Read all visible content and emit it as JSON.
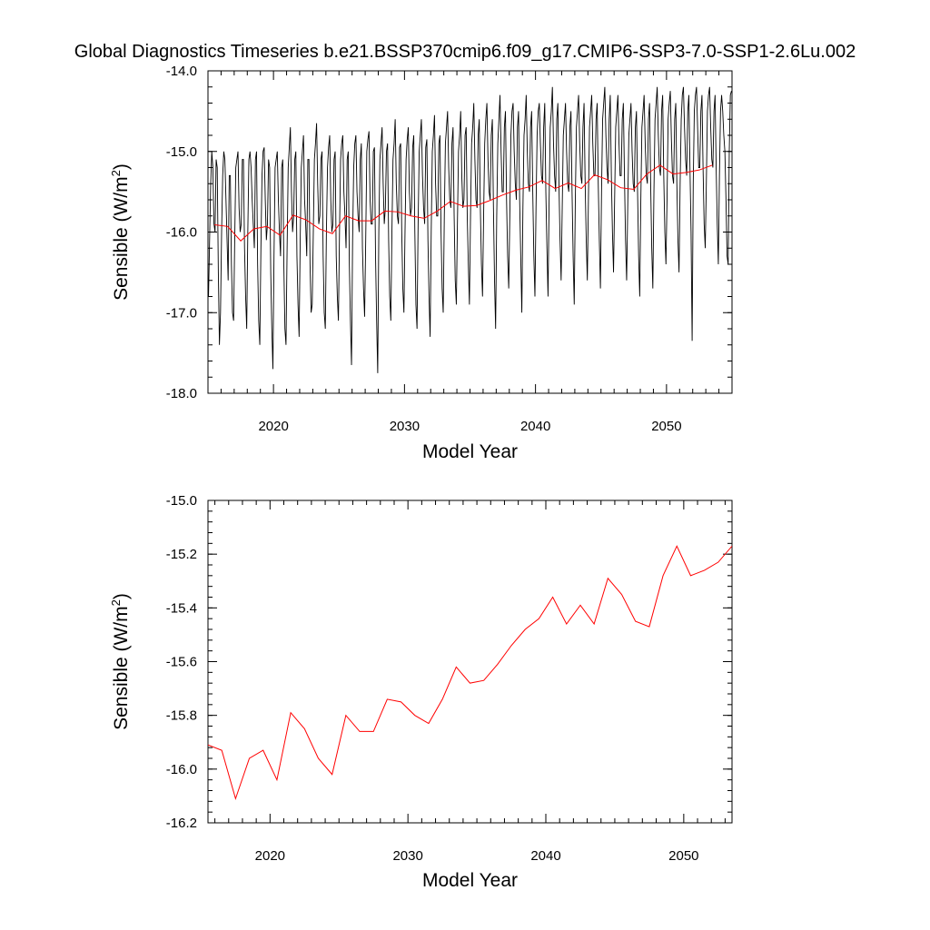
{
  "figure": {
    "title": "Global Diagnostics Timeseries b.e21.BSSP370cmip6.f09_g17.CMIP6-SSP3-7.0-SSP1-2.6Lu.002"
  },
  "colors": {
    "monthly_line": "#000000",
    "annual_line": "#ff0000",
    "axes": "#000000",
    "background": "#ffffff"
  },
  "chart_data": [
    {
      "type": "line",
      "xlabel": "Model Year",
      "ylabel_main": "Sensible (W/m",
      "ylabel_sup": "2",
      "ylabel_tail": ")",
      "xlim": [
        2015,
        2055
      ],
      "ylim": [
        -18.0,
        -14.0
      ],
      "xticks": [
        2020,
        2030,
        2040,
        2050
      ],
      "xtick_labels": [
        "2020",
        "2030",
        "2040",
        "2050"
      ],
      "yticks": [
        -18.0,
        -17.0,
        -16.0,
        -15.0,
        -14.0
      ],
      "ytick_labels": [
        "-18.0",
        "-17.0",
        "-16.0",
        "-15.0",
        "-14.0"
      ],
      "grid": false,
      "series": [
        {
          "kind": "monthly",
          "x_start": 2015.04,
          "x_step": 0.0833333,
          "color": "#000000",
          "values": [
            -16.8,
            -16.1,
            -15.4,
            -15.0,
            -15.2,
            -15.9,
            -16.0,
            -15.1,
            -15.2,
            -16.5,
            -17.4,
            -17.0,
            -16.0,
            -15.3,
            -15.0,
            -15.1,
            -15.6,
            -16.1,
            -16.6,
            -15.3,
            -15.3,
            -16.4,
            -17.0,
            -17.1,
            -16.1,
            -15.2,
            -15.1,
            -15.0,
            -15.7,
            -16.0,
            -15.9,
            -15.1,
            -15.1,
            -16.2,
            -16.8,
            -17.2,
            -16.0,
            -15.1,
            -15.0,
            -15.2,
            -15.6,
            -15.9,
            -16.2,
            -15.1,
            -15.0,
            -16.4,
            -17.1,
            -17.4,
            -16.2,
            -15.3,
            -15.0,
            -14.95,
            -15.6,
            -16.1,
            -15.9,
            -15.1,
            -15.2,
            -16.5,
            -17.2,
            -17.7,
            -16.3,
            -15.2,
            -15.1,
            -15.0,
            -15.6,
            -16.0,
            -16.3,
            -15.2,
            -15.1,
            -16.4,
            -17.2,
            -17.4,
            -16.2,
            -15.2,
            -14.95,
            -14.7,
            -15.5,
            -16.0,
            -15.8,
            -15.1,
            -15.0,
            -16.3,
            -16.9,
            -17.3,
            -16.1,
            -15.2,
            -15.0,
            -14.8,
            -15.6,
            -15.9,
            -16.3,
            -15.1,
            -15.1,
            -16.4,
            -17.0,
            -16.9,
            -16.0,
            -15.1,
            -14.9,
            -14.65,
            -15.4,
            -15.9,
            -15.8,
            -15.1,
            -15.0,
            -16.3,
            -17.0,
            -17.2,
            -16.0,
            -15.2,
            -14.95,
            -14.8,
            -15.6,
            -16.0,
            -15.9,
            -15.1,
            -15.0,
            -16.3,
            -16.8,
            -17.1,
            -16.0,
            -15.1,
            -14.9,
            -14.8,
            -15.5,
            -15.8,
            -16.2,
            -15.1,
            -15.0,
            -16.4,
            -17.1,
            -17.65,
            -16.1,
            -15.2,
            -14.9,
            -14.8,
            -15.5,
            -15.8,
            -16.0,
            -15.1,
            -14.9,
            -16.2,
            -16.7,
            -17.05,
            -16.1,
            -15.0,
            -14.85,
            -14.75,
            -15.6,
            -15.9,
            -15.9,
            -15.0,
            -14.95,
            -16.3,
            -17.1,
            -17.75,
            -16.0,
            -15.1,
            -14.9,
            -14.7,
            -15.4,
            -15.9,
            -15.7,
            -15.0,
            -14.9,
            -16.1,
            -16.8,
            -17.1,
            -16.0,
            -15.1,
            -14.9,
            -14.6,
            -15.4,
            -15.8,
            -15.9,
            -14.95,
            -14.9,
            -16.0,
            -16.7,
            -17.0,
            -16.0,
            -15.1,
            -14.85,
            -14.7,
            -15.5,
            -15.8,
            -15.7,
            -14.95,
            -14.8,
            -16.0,
            -16.9,
            -17.2,
            -15.9,
            -15.0,
            -14.8,
            -14.6,
            -15.3,
            -15.7,
            -15.9,
            -14.95,
            -14.85,
            -16.1,
            -16.8,
            -17.3,
            -16.0,
            -15.0,
            -14.8,
            -14.55,
            -15.4,
            -15.8,
            -15.8,
            -14.9,
            -14.8,
            -16.0,
            -16.7,
            -17.0,
            -15.8,
            -14.9,
            -14.7,
            -14.5,
            -15.2,
            -15.6,
            -15.7,
            -14.9,
            -14.7,
            -15.8,
            -16.6,
            -16.9,
            -15.9,
            -15.0,
            -14.8,
            -14.5,
            -15.3,
            -15.7,
            -15.6,
            -14.8,
            -14.7,
            -15.8,
            -16.4,
            -16.9,
            -15.8,
            -14.9,
            -14.7,
            -14.4,
            -15.1,
            -15.6,
            -15.7,
            -14.8,
            -14.6,
            -15.7,
            -16.4,
            -16.8,
            -15.8,
            -14.9,
            -14.6,
            -14.4,
            -15.1,
            -15.5,
            -15.6,
            -14.8,
            -14.6,
            -15.7,
            -16.6,
            -17.2,
            -15.8,
            -14.9,
            -14.6,
            -14.3,
            -15.0,
            -15.5,
            -15.5,
            -14.7,
            -14.5,
            -15.6,
            -16.3,
            -16.7,
            -15.8,
            -14.8,
            -14.5,
            -14.4,
            -15.0,
            -15.4,
            -15.6,
            -14.7,
            -14.5,
            -15.6,
            -16.3,
            -17.0,
            -15.7,
            -14.8,
            -14.6,
            -14.3,
            -15.0,
            -15.4,
            -15.5,
            -14.7,
            -14.5,
            -15.5,
            -16.3,
            -16.8,
            -15.7,
            -14.8,
            -14.5,
            -14.4,
            -14.9,
            -15.3,
            -15.4,
            -14.7,
            -14.4,
            -15.5,
            -16.2,
            -16.8,
            -15.6,
            -14.7,
            -14.5,
            -14.2,
            -14.9,
            -15.3,
            -15.5,
            -14.6,
            -14.4,
            -15.4,
            -16.1,
            -16.6,
            -15.7,
            -14.8,
            -14.6,
            -14.4,
            -15.0,
            -15.4,
            -15.5,
            -14.7,
            -14.5,
            -15.5,
            -16.3,
            -16.9,
            -15.6,
            -14.7,
            -14.5,
            -14.3,
            -14.9,
            -15.3,
            -15.4,
            -14.7,
            -14.4,
            -15.4,
            -16.1,
            -16.6,
            -15.6,
            -14.7,
            -14.5,
            -14.3,
            -14.9,
            -15.3,
            -15.3,
            -14.6,
            -14.4,
            -15.4,
            -16.1,
            -16.7,
            -15.5,
            -14.6,
            -14.4,
            -14.2,
            -14.8,
            -15.2,
            -15.4,
            -14.6,
            -14.3,
            -15.3,
            -16.0,
            -16.5,
            -15.6,
            -14.7,
            -14.5,
            -14.3,
            -14.9,
            -15.3,
            -15.3,
            -14.6,
            -14.4,
            -15.3,
            -16.1,
            -16.6,
            -15.7,
            -14.8,
            -14.6,
            -14.4,
            -15.0,
            -15.4,
            -15.5,
            -14.7,
            -14.5,
            -15.5,
            -16.3,
            -16.8,
            -15.6,
            -14.7,
            -14.5,
            -14.3,
            -14.9,
            -15.3,
            -15.4,
            -14.6,
            -14.4,
            -15.4,
            -16.2,
            -16.7,
            -15.5,
            -14.6,
            -14.4,
            -14.2,
            -14.8,
            -15.2,
            -15.3,
            -14.5,
            -14.3,
            -15.3,
            -16.0,
            -16.4,
            -15.6,
            -14.6,
            -14.4,
            -14.25,
            -14.85,
            -15.3,
            -15.4,
            -14.6,
            -14.4,
            -15.4,
            -16.1,
            -16.5,
            -15.4,
            -14.6,
            -14.3,
            -14.2,
            -14.7,
            -15.1,
            -15.3,
            -14.5,
            -14.3,
            -15.2,
            -16.0,
            -17.35,
            -15.4,
            -14.5,
            -14.3,
            -14.2,
            -14.7,
            -15.2,
            -15.2,
            -14.5,
            -14.3,
            -15.2,
            -15.9,
            -16.2,
            -15.4,
            -14.5,
            -14.3,
            -14.2,
            -14.7,
            -15.1,
            -15.2,
            -14.5,
            -14.3,
            -15.2,
            -15.9,
            -16.4,
            -15.3,
            -14.5,
            -14.3,
            -14.5,
            -14.8,
            -15.0,
            -15.6,
            -16.3,
            -16.4,
            -15.0,
            -14.3,
            -14.25
          ]
        },
        {
          "kind": "annual",
          "x_start": 2015.5,
          "x_step": 1,
          "color": "#ff0000",
          "values": [
            -15.91,
            -15.93,
            -16.11,
            -15.96,
            -15.93,
            -16.04,
            -15.79,
            -15.85,
            -15.96,
            -16.02,
            -15.8,
            -15.86,
            -15.86,
            -15.74,
            -15.75,
            -15.8,
            -15.83,
            -15.74,
            -15.62,
            -15.68,
            -15.67,
            -15.61,
            -15.54,
            -15.48,
            -15.44,
            -15.36,
            -15.46,
            -15.39,
            -15.46,
            -15.29,
            -15.35,
            -15.45,
            -15.47,
            -15.28,
            -15.17,
            -15.28,
            -15.26,
            -15.23,
            -15.17
          ]
        }
      ]
    },
    {
      "type": "line",
      "xlabel": "Model Year",
      "ylabel_main": "Sensible (W/m",
      "ylabel_sup": "2",
      "ylabel_tail": ")",
      "xlim": [
        2015.5,
        2053.5
      ],
      "ylim": [
        -16.2,
        -15.0
      ],
      "xticks": [
        2020,
        2030,
        2040,
        2050
      ],
      "xtick_labels": [
        "2020",
        "2030",
        "2040",
        "2050"
      ],
      "yticks": [
        -16.2,
        -16.0,
        -15.8,
        -15.6,
        -15.4,
        -15.2,
        -15.0
      ],
      "ytick_labels": [
        "-16.2",
        "-16.0",
        "-15.8",
        "-15.6",
        "-15.4",
        "-15.2",
        "-15.0"
      ],
      "grid": false,
      "series": [
        {
          "kind": "annual",
          "x_start": 2015.5,
          "x_step": 1,
          "color": "#ff0000",
          "values": [
            -15.91,
            -15.93,
            -16.11,
            -15.96,
            -15.93,
            -16.04,
            -15.79,
            -15.85,
            -15.96,
            -16.02,
            -15.8,
            -15.86,
            -15.86,
            -15.74,
            -15.75,
            -15.8,
            -15.83,
            -15.74,
            -15.62,
            -15.68,
            -15.67,
            -15.61,
            -15.54,
            -15.48,
            -15.44,
            -15.36,
            -15.46,
            -15.39,
            -15.46,
            -15.29,
            -15.35,
            -15.45,
            -15.47,
            -15.28,
            -15.17,
            -15.28,
            -15.26,
            -15.23,
            -15.17
          ]
        }
      ]
    }
  ]
}
